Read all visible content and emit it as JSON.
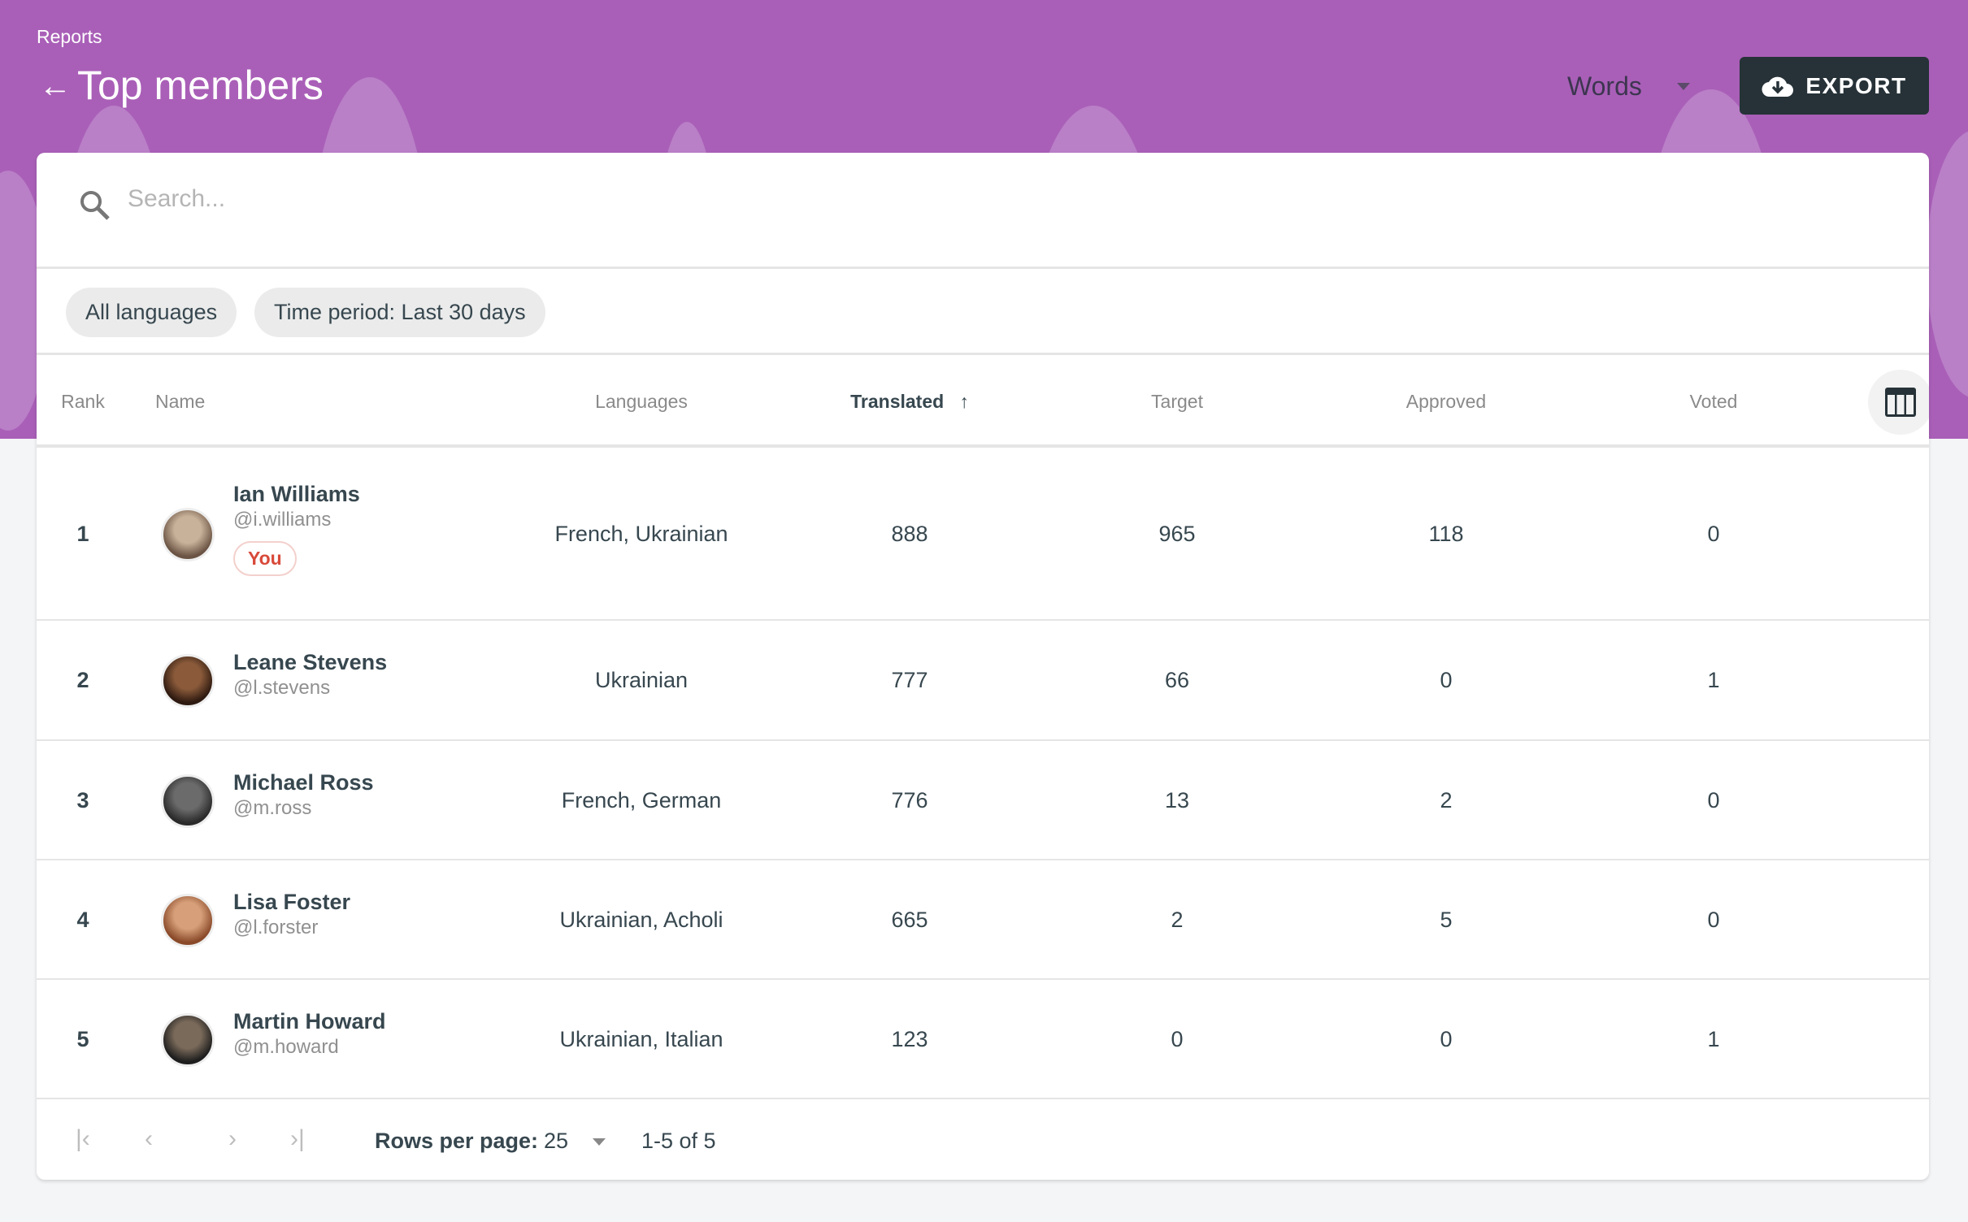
{
  "header": {
    "breadcrumb": "Reports",
    "title": "Top members",
    "unit_select": "Words",
    "export_label": "EXPORT",
    "brand_color": "#a95fb7"
  },
  "search": {
    "placeholder": "Search..."
  },
  "filters": [
    "All languages",
    "Time period: Last 30 days"
  ],
  "table": {
    "columns": [
      "Rank",
      "Name",
      "Languages",
      "Translated",
      "Target",
      "Approved",
      "Voted"
    ],
    "sort": {
      "column": "Translated",
      "direction": "ascending"
    },
    "rows": [
      {
        "rank": "1",
        "name": "Ian Williams",
        "handle": "@i.williams",
        "badge": "You",
        "languages": "French, Ukrainian",
        "translated": "888",
        "target": "965",
        "approved": "118",
        "voted": "0"
      },
      {
        "rank": "2",
        "name": "Leane Stevens",
        "handle": "@l.stevens",
        "languages": "Ukrainian",
        "translated": "777",
        "target": "66",
        "approved": "0",
        "voted": "1"
      },
      {
        "rank": "3",
        "name": "Michael Ross",
        "handle": "@m.ross",
        "languages": "French, German",
        "translated": "776",
        "target": "13",
        "approved": "2",
        "voted": "0"
      },
      {
        "rank": "4",
        "name": "Lisa Foster",
        "handle": "@l.forster",
        "languages": "Ukrainian, Acholi",
        "translated": "665",
        "target": "2",
        "approved": "5",
        "voted": "0"
      },
      {
        "rank": "5",
        "name": "Martin Howard",
        "handle": "@m.howard",
        "languages": "Ukrainian, Italian",
        "translated": "123",
        "target": "0",
        "approved": "0",
        "voted": "1"
      }
    ]
  },
  "pagination": {
    "rows_per_page_label": "Rows per page:",
    "rows_per_page": "25",
    "range": "1-5 of 5"
  }
}
